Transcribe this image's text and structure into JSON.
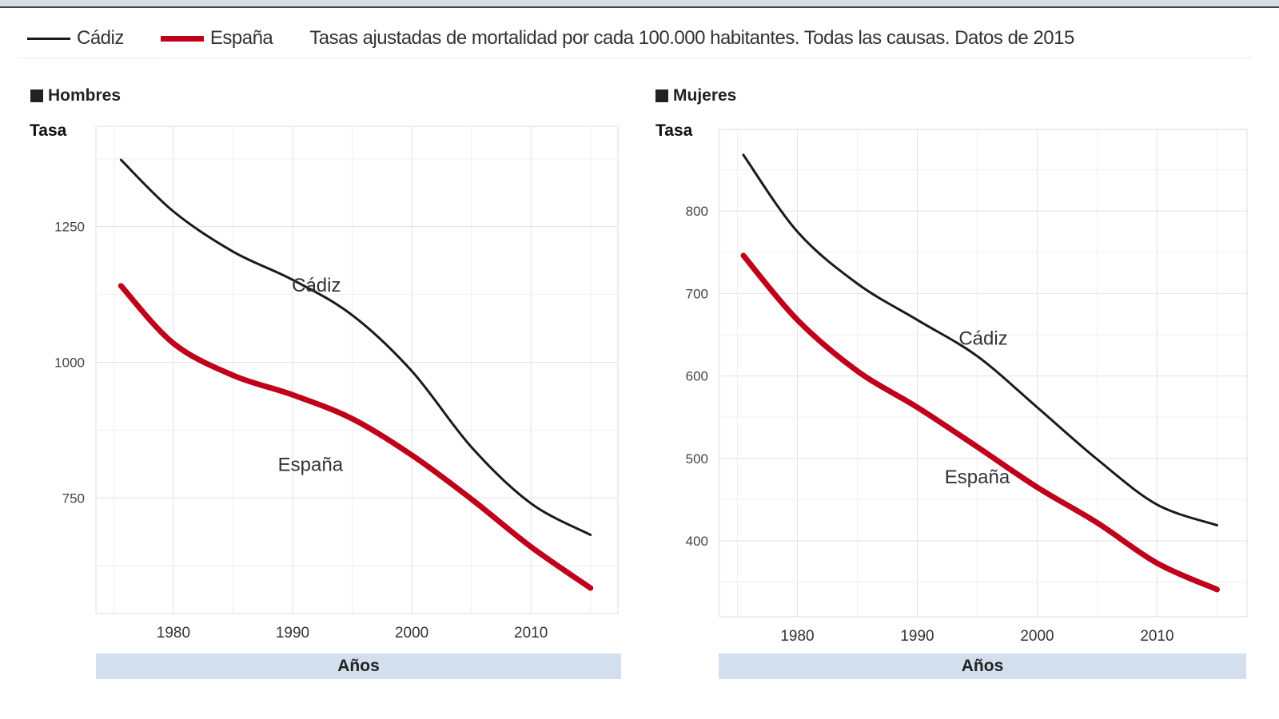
{
  "legend": {
    "items": [
      {
        "label": "Cádiz",
        "color": "#1a1a1a"
      },
      {
        "label": "España",
        "color": "#c0001a"
      }
    ],
    "description": "Tasas ajustadas de mortalidad por cada 100.000 habitantes. Todas las causas. Datos de 2015"
  },
  "chart_data": [
    {
      "type": "line",
      "title": "Hombres",
      "ylabel": "Tasa",
      "xlabel": "Años",
      "xlim": [
        1973.5,
        2017.3
      ],
      "ylim": [
        537,
        1435
      ],
      "xticks": [
        "1980",
        "1990",
        "2000",
        "2010"
      ],
      "yticks": [
        "750",
        "1000",
        "1250"
      ],
      "grid": true,
      "legend": "top",
      "x": [
        1975.6,
        1980,
        1985,
        1990,
        1995,
        2000,
        2005,
        2010,
        2015
      ],
      "series": [
        {
          "name": "Cádiz",
          "color": "#1a1a1a",
          "values": [
            1373,
            1278,
            1204,
            1152,
            1087,
            984,
            844,
            740,
            682
          ]
        },
        {
          "name": "España",
          "color": "#c0001a",
          "values": [
            1141,
            1035,
            976,
            940,
            896,
            829,
            748,
            660,
            584
          ]
        }
      ],
      "annotations": [
        {
          "text": "Cádiz",
          "x": 1992,
          "y": 1130
        },
        {
          "text": "España",
          "x": 1991.5,
          "y": 800
        }
      ]
    },
    {
      "type": "line",
      "title": "Mujeres",
      "ylabel": "Tasa",
      "xlabel": "Años",
      "xlim": [
        1973.5,
        2017.5
      ],
      "ylim": [
        308,
        899
      ],
      "xticks": [
        "1980",
        "1990",
        "2000",
        "2010"
      ],
      "yticks": [
        "400",
        "500",
        "600",
        "700",
        "800"
      ],
      "grid": true,
      "legend": "top",
      "x": [
        1975.5,
        1980,
        1985,
        1990,
        1995,
        2000,
        2005,
        2010,
        2015
      ],
      "series": [
        {
          "name": "Cádiz",
          "color": "#1a1a1a",
          "values": [
            868,
            775,
            712,
            668,
            624,
            562,
            499,
            444,
            419
          ]
        },
        {
          "name": "España",
          "color": "#c0001a",
          "values": [
            746,
            668,
            606,
            562,
            514,
            465,
            422,
            373,
            341
          ]
        }
      ],
      "annotations": [
        {
          "text": "Cádiz",
          "x": 1995.5,
          "y": 638
        },
        {
          "text": "España",
          "x": 1995,
          "y": 470
        }
      ]
    }
  ]
}
